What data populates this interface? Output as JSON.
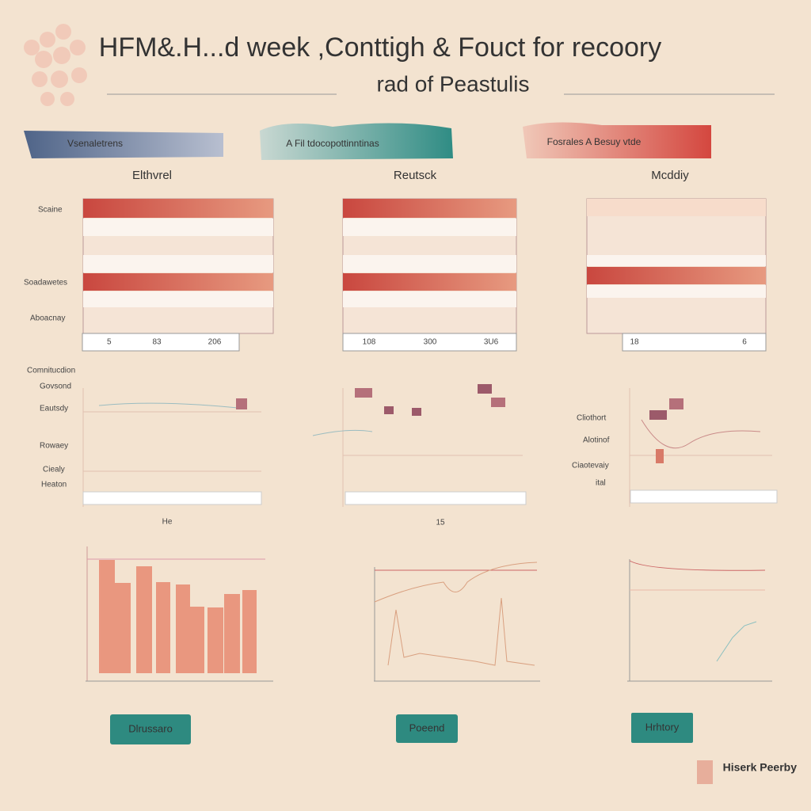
{
  "header": {
    "title": "HFM&.H...d week ,Conttigh & Fouct for recoory",
    "subtitle": "rad of Peastulis"
  },
  "banners": [
    "Vsenaletrens",
    "A Fil tdocopottinntinas",
    "Fosrales A Besuy vtde"
  ],
  "columns": [
    {
      "heading": "Elthvrel",
      "ticks": [
        "5",
        "83",
        "206"
      ]
    },
    {
      "heading": "Reutsck",
      "ticks": [
        "108",
        "300",
        "3U6"
      ]
    },
    {
      "heading": "Mcddiy",
      "ticks": [
        "18",
        "6"
      ]
    }
  ],
  "row_labels": [
    "Scaine",
    "Soadawetes",
    "Aboacnay"
  ],
  "section2": {
    "left_labels": [
      "Comnitucdion",
      "Govsond",
      "Eautsdy",
      "Rowaey",
      "Ciealy",
      "Heaton"
    ],
    "right_labels": [
      "Cliothort",
      "Alotinof",
      "Ciaotevaiy",
      "ital"
    ],
    "notes": [
      "He",
      "15"
    ]
  },
  "buttons": [
    "Dlrussaro",
    "Poeend",
    "Hrhtory"
  ],
  "footer": {
    "logo": "Hiserk Peerby"
  }
}
